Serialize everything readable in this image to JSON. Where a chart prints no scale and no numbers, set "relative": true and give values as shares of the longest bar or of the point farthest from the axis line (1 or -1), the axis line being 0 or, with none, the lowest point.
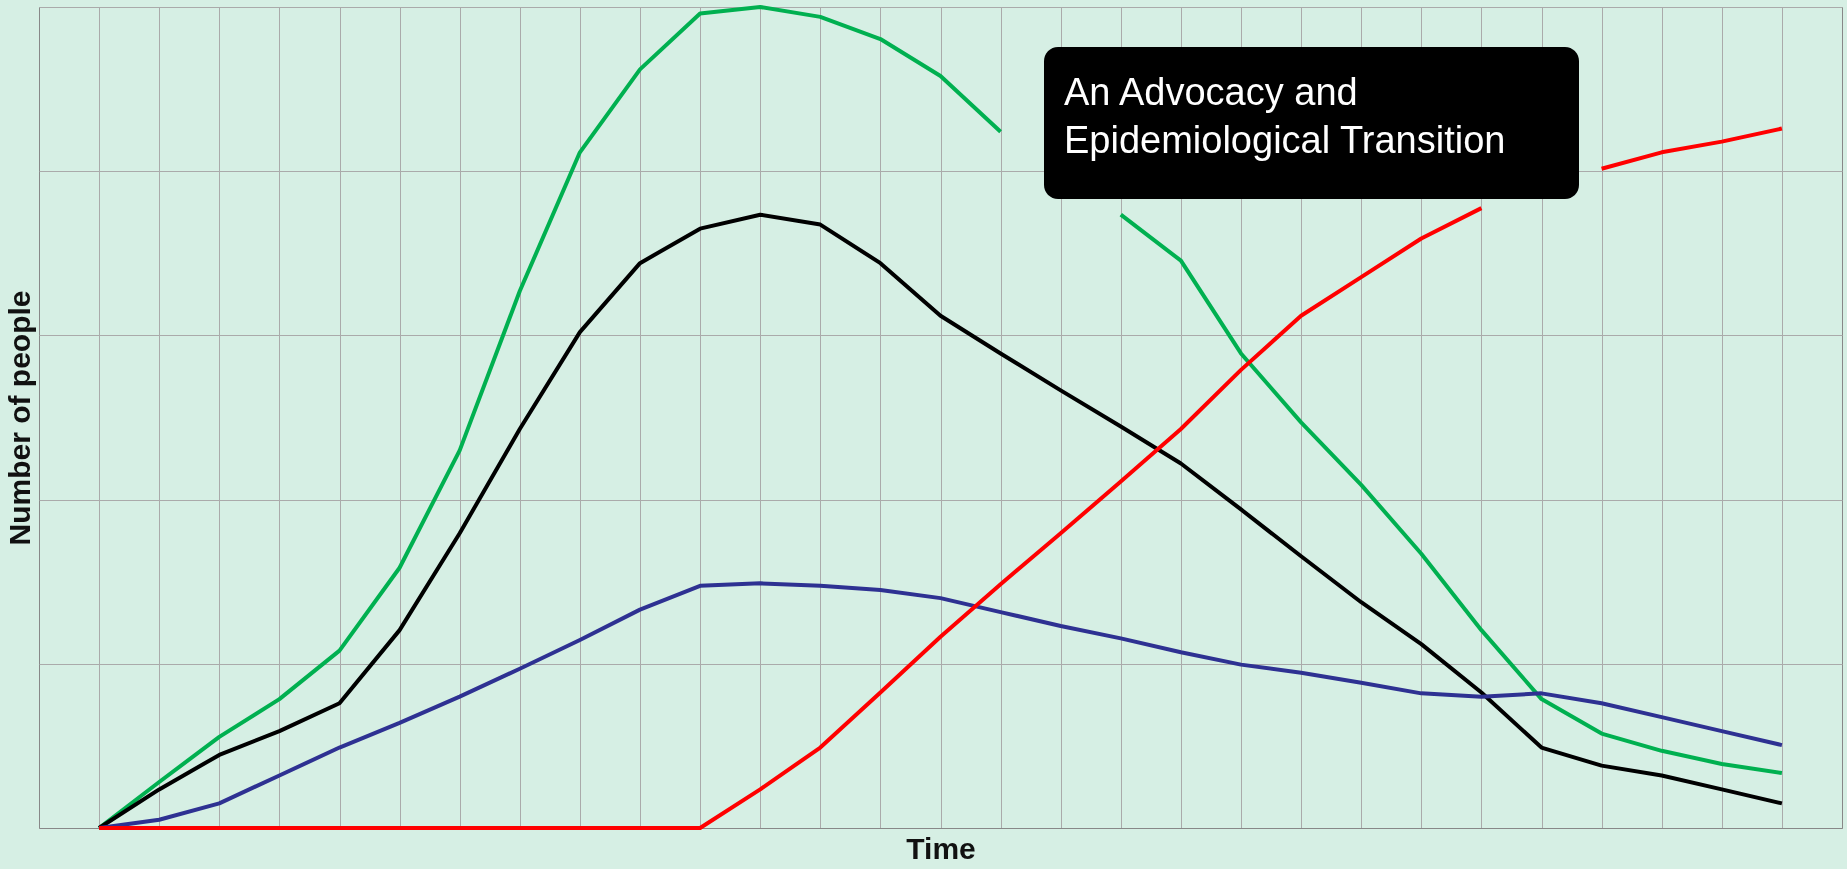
{
  "chart_data": {
    "type": "line",
    "relative": true,
    "xlabel": "Time",
    "ylabel": "Number of people",
    "grid": true,
    "legend": false,
    "marker": "none",
    "line_style": "solid",
    "categories": [
      null,
      null,
      null,
      null,
      null,
      null,
      null,
      null,
      null,
      null,
      null,
      null,
      null,
      null,
      null,
      null,
      null,
      null,
      null,
      null,
      null,
      null,
      null,
      null,
      null,
      null,
      null,
      null,
      null
    ],
    "series": [
      {
        "color": "#00b050",
        "values": [
          0,
          0.056,
          0.111,
          0.157,
          0.216,
          0.317,
          0.46,
          0.654,
          0.823,
          0.924,
          0.992,
          1,
          0.988,
          0.961,
          0.916,
          0.848,
          null,
          0.747,
          0.691,
          0.578,
          0.494,
          0.418,
          0.334,
          0.241,
          0.157,
          0.115,
          0.094,
          0.078,
          0.067
        ]
      },
      {
        "color": "#000000",
        "values": [
          0,
          0.047,
          0.089,
          0.118,
          0.152,
          0.241,
          0.359,
          0.486,
          0.604,
          0.688,
          0.73,
          0.747,
          0.735,
          0.688,
          0.624,
          0.578,
          0.533,
          0.489,
          0.444,
          0.388,
          0.331,
          0.275,
          0.224,
          0.165,
          0.098,
          0.076,
          0.064,
          0.047,
          0.03
        ]
      },
      {
        "color": "#2e3192",
        "values": [
          0,
          0.01,
          0.03,
          0.064,
          0.098,
          0.128,
          0.16,
          0.194,
          0.229,
          0.266,
          0.295,
          0.298,
          0.295,
          0.29,
          0.28,
          0.263,
          0.246,
          0.231,
          0.214,
          0.199,
          0.189,
          0.177,
          0.164,
          0.16,
          0.164,
          0.152,
          0.135,
          0.118,
          0.101
        ]
      },
      {
        "color": "#ff0000",
        "values": [
          0,
          0,
          0,
          0,
          0,
          0,
          0,
          0,
          0,
          0,
          0,
          0.047,
          0.098,
          0.165,
          0.233,
          0.297,
          0.359,
          0.422,
          0.486,
          0.558,
          0.624,
          0.671,
          0.718,
          0.755,
          null,
          0.803,
          0.823,
          0.836,
          0.852
        ]
      }
    ],
    "annotations": [
      "An Advocacy and Epidemiological Transition"
    ]
  }
}
